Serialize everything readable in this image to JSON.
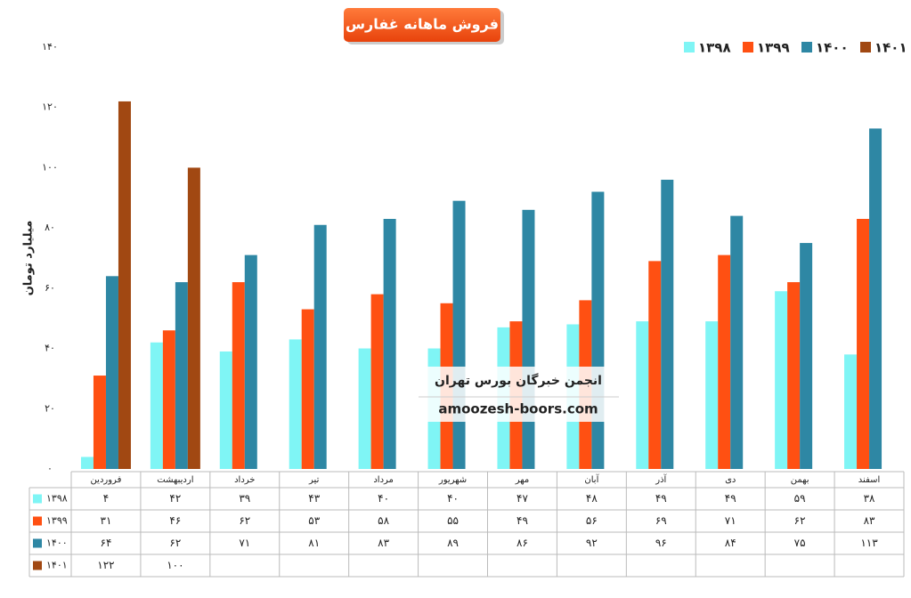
{
  "chart_data": {
    "type": "bar",
    "title": "فروش ماهانه غفارس",
    "y_label": "میلیارد تومان",
    "annotations": [
      "انجمن خبرگان بورس تهران",
      "amoozesh-boors.com"
    ],
    "categories": [
      "فروردین",
      "اردیبهشت",
      "خرداد",
      "تیر",
      "مرداد",
      "شهریور",
      "مهر",
      "آبان",
      "آذر",
      "دی",
      "بهمن",
      "اسفند"
    ],
    "series": [
      {
        "name": "۱۳۹۸",
        "color": "#7ff5f5",
        "values": [
          4,
          42,
          39,
          43,
          40,
          40,
          47,
          48,
          49,
          49,
          59,
          38
        ],
        "value_labels": [
          "۴",
          "۴۲",
          "۳۹",
          "۴۳",
          "۴۰",
          "۴۰",
          "۴۷",
          "۴۸",
          "۴۹",
          "۴۹",
          "۵۹",
          "۳۸"
        ]
      },
      {
        "name": "۱۳۹۹",
        "color": "#ff5012",
        "values": [
          31,
          46,
          62,
          53,
          58,
          55,
          49,
          56,
          69,
          71,
          62,
          83
        ],
        "value_labels": [
          "۳۱",
          "۴۶",
          "۶۲",
          "۵۳",
          "۵۸",
          "۵۵",
          "۴۹",
          "۵۶",
          "۶۹",
          "۷۱",
          "۶۲",
          "۸۳"
        ]
      },
      {
        "name": "۱۴۰۰",
        "color": "#2e87a4",
        "values": [
          64,
          62,
          71,
          81,
          83,
          89,
          86,
          92,
          96,
          84,
          75,
          113
        ],
        "value_labels": [
          "۶۴",
          "۶۲",
          "۷۱",
          "۸۱",
          "۸۳",
          "۸۹",
          "۸۶",
          "۹۲",
          "۹۶",
          "۸۴",
          "۷۵",
          "۱۱۳"
        ]
      },
      {
        "name": "۱۴۰۱",
        "color": "#a14812",
        "values": [
          122,
          100,
          null,
          null,
          null,
          null,
          null,
          null,
          null,
          null,
          null,
          null
        ],
        "value_labels": [
          "۱۲۲",
          "۱۰۰",
          null,
          null,
          null,
          null,
          null,
          null,
          null,
          null,
          null,
          null
        ]
      }
    ],
    "ylim": [
      0,
      140
    ],
    "yticks": [
      {
        "value": 0,
        "label": "۰"
      },
      {
        "value": 20,
        "label": "۲۰"
      },
      {
        "value": 40,
        "label": "۴۰"
      },
      {
        "value": 60,
        "label": "۶۰"
      },
      {
        "value": 80,
        "label": "۸۰"
      },
      {
        "value": 100,
        "label": "۱۰۰"
      },
      {
        "value": 120,
        "label": "۱۲۰"
      },
      {
        "value": 140,
        "label": "۱۴۰"
      }
    ],
    "grid": false,
    "legend": "top-right"
  }
}
